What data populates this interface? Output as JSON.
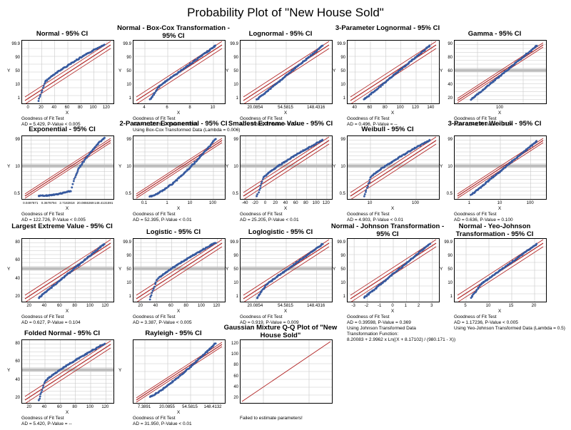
{
  "title": "Probability Plot of \"New House Sold\"",
  "chart_data": [
    {
      "type": "scatter",
      "title": "Normal - 95% CI",
      "xlabel": "X",
      "ylabel": "Y",
      "x_ticks": [
        "0",
        "20",
        "40",
        "60",
        "80",
        "100",
        "120"
      ],
      "y_ticks": [
        "99.9",
        "90",
        "50",
        "10",
        "1"
      ],
      "gof_lines": [
        "Goodness of Fit Test",
        "AD = 5.429, P-Value < 0.005"
      ],
      "curve": "concave",
      "band": "wide"
    },
    {
      "type": "scatter",
      "title": "Normal - Box-Cox Transformation - 95% CI",
      "xlabel": "X",
      "ylabel": "Y",
      "x_ticks": [
        "4",
        "6",
        "8",
        "10"
      ],
      "y_ticks": [
        "99.9",
        "90",
        "50",
        "10",
        "1"
      ],
      "gof_lines": [
        "Goodness of Fit Test",
        "AD = 1.12526, P-Value 0.00601",
        "Using Box-Cox Transformed Data (Lambda = 0.006)"
      ],
      "curve": "mild",
      "band": "wide"
    },
    {
      "type": "scatter",
      "title": "Lognormal - 95% CI",
      "xlabel": "X",
      "ylabel": "Y",
      "x_ticks": [
        "20.0854",
        "54.5815",
        "148.4316"
      ],
      "y_ticks": [
        "99.9",
        "90",
        "50",
        "10",
        "1"
      ],
      "gof_lines": [
        "Goodness of Fit Test",
        "AD = 0.683, P-Value = 0.074"
      ],
      "curve": "linear",
      "band": "wide"
    },
    {
      "type": "scatter",
      "title": "3-Parameter Lognormal - 95% CI",
      "xlabel": "X",
      "ylabel": "Y",
      "x_ticks": [
        "40",
        "60",
        "80",
        "100",
        "120",
        "140"
      ],
      "y_ticks": [
        "99.9",
        "90",
        "50",
        "10",
        "1"
      ],
      "gof_lines": [
        "Goodness of Fit Test",
        "AD = 0.496, P-Value = --"
      ],
      "curve": "linear",
      "band": "wide"
    },
    {
      "type": "scatter",
      "title": "Gamma - 95% CI",
      "xlabel": "X",
      "ylabel": "Y",
      "x_ticks": [
        "100"
      ],
      "y_ticks": [
        "90",
        "80",
        "60",
        "40",
        "20"
      ],
      "gof_lines": [
        "Goodness of Fit Test",
        "AD = 0.543, P-Value = 0.184"
      ],
      "curve": "linear",
      "band": "narrow",
      "dense_grid": true
    },
    {
      "type": "scatter",
      "title": "Exponential - 95% CI",
      "xlabel": "X",
      "ylabel": "Y",
      "x_ticks": [
        "0.0497871",
        "0.3678794",
        "2.7182818",
        "20.0855369",
        "148.4131591"
      ],
      "y_ticks": [
        "99",
        "10",
        "0.5"
      ],
      "gof_lines": [
        "Goodness of Fit Test",
        "AD = 122.726, P-Value < 0.005"
      ],
      "curve": "steep",
      "band": "narrow",
      "dense_grid": true
    },
    {
      "type": "scatter",
      "title": "2-Parameter Exponential - 95% CI",
      "xlabel": "X",
      "ylabel": "Y",
      "x_ticks": [
        "0.1",
        "1",
        "10",
        "100"
      ],
      "y_ticks": [
        "99",
        "10",
        "0.5"
      ],
      "gof_lines": [
        "Goodness of Fit Test",
        "AD = 52.395, P-Value < 0.01"
      ],
      "curve": "steep2",
      "band": "narrow",
      "dense_grid": true
    },
    {
      "type": "scatter",
      "title": "Smallest Extreme Value - 95% CI",
      "xlabel": "X",
      "ylabel": "Y",
      "x_ticks": [
        "-40",
        "-20",
        "0",
        "20",
        "40",
        "60",
        "80",
        "100",
        "120"
      ],
      "y_ticks": [
        "99",
        "10",
        "0.5"
      ],
      "gof_lines": [
        "Goodness of Fit Test",
        "AD = 25.205, P-Value < 0.01"
      ],
      "curve": "concave",
      "band": "wide",
      "dense_grid": true
    },
    {
      "type": "scatter",
      "title": "Weibull - 95% CI",
      "xlabel": "X",
      "ylabel": "Y",
      "x_ticks": [
        "10",
        "100"
      ],
      "y_ticks": [
        "99",
        "10",
        "0.5"
      ],
      "gof_lines": [
        "Goodness of Fit Test",
        "AD = 4.903, P-Value < 0.01"
      ],
      "curve": "concave",
      "band": "wide",
      "dense_grid": true
    },
    {
      "type": "scatter",
      "title": "3-Parameter Weibull - 95% CI",
      "xlabel": "X",
      "ylabel": "Y",
      "x_ticks": [
        "1",
        "10",
        "100"
      ],
      "y_ticks": [
        "99",
        "10",
        "0.5"
      ],
      "gof_lines": [
        "Goodness of Fit Test",
        "AD = 0.636, P-Value = 0.100"
      ],
      "curve": "linear",
      "band": "narrow",
      "dense_grid": true
    },
    {
      "type": "scatter",
      "title": "Largest Extreme Value - 95% CI",
      "xlabel": "X",
      "ylabel": "Y",
      "x_ticks": [
        "20",
        "40",
        "60",
        "80",
        "100",
        "120"
      ],
      "y_ticks": [
        "80",
        "60",
        "40",
        "20"
      ],
      "gof_lines": [
        "Goodness of Fit Test",
        "AD = 0.627, P-Value = 0.104"
      ],
      "curve": "linear",
      "band": "wide",
      "dense_grid": true
    },
    {
      "type": "scatter",
      "title": "Logistic - 95% CI",
      "xlabel": "X",
      "ylabel": "Y",
      "x_ticks": [
        "20",
        "40",
        "60",
        "80",
        "100",
        "120"
      ],
      "y_ticks": [
        "99.9",
        "90",
        "50",
        "10",
        "1"
      ],
      "gof_lines": [
        "Goodness of Fit Test",
        "AD = 3.387, P-Value < 0.005"
      ],
      "curve": "concave",
      "band": "wide",
      "dense_grid": true
    },
    {
      "type": "scatter",
      "title": "Loglogistic - 95% CI",
      "xlabel": "X",
      "ylabel": "Y",
      "x_ticks": [
        "20.0854",
        "54.5815",
        "148.4316"
      ],
      "y_ticks": [
        "99.9",
        "90",
        "50",
        "10",
        "1"
      ],
      "gof_lines": [
        "Goodness of Fit Test",
        "AD = 0.919, P-Value = 0.009"
      ],
      "curve": "mild",
      "band": "wide",
      "dense_grid": true
    },
    {
      "type": "scatter",
      "title": "Normal - Johnson Transformation - 95% CI",
      "xlabel": "X",
      "ylabel": "Y",
      "x_ticks": [
        "-3",
        "-2",
        "-1",
        "0",
        "1",
        "2",
        "3"
      ],
      "y_ticks": [
        "99.9",
        "90",
        "50",
        "10",
        "1"
      ],
      "gof_lines": [
        "Goodness of Fit Test",
        "AD = 0.39598, P-Value = 0.369",
        "Using Johnson Transformed Data",
        "Transformation Function:",
        "8.20083 + 2.9962 x Ln((X + 8.17102) / (980.171 - X))"
      ],
      "curve": "linear",
      "band": "wide"
    },
    {
      "type": "scatter",
      "title": "Normal - Yeo-Johnson Transformation - 95% CI",
      "xlabel": "X",
      "ylabel": "Y",
      "x_ticks": [
        "5",
        "10",
        "15",
        "20"
      ],
      "y_ticks": [
        "99.9",
        "90",
        "50",
        "10",
        "1"
      ],
      "gof_lines": [
        "Goodness of Fit Test",
        "AD = 1.17236, P-Value < 0.005",
        "Using Yeo-Johnson Transformed Data (Lambda = 0.5)"
      ],
      "curve": "mild",
      "band": "wide"
    },
    {
      "type": "scatter",
      "title": "Folded Normal - 95% CI",
      "xlabel": "X",
      "ylabel": "Y",
      "x_ticks": [
        "20",
        "40",
        "60",
        "80",
        "100",
        "120"
      ],
      "y_ticks": [
        "80",
        "60",
        "40",
        "20"
      ],
      "gof_lines": [
        "Goodness of Fit Test",
        "AD = 5.420, P-Value = --"
      ],
      "curve": "concave",
      "band": "wide",
      "dense_grid": true
    },
    {
      "type": "scatter",
      "title": "Rayleigh - 95% CI",
      "xlabel": "X",
      "ylabel": "Y",
      "x_ticks": [
        "7.3891",
        "20.0855",
        "54.5815",
        "148.4132"
      ],
      "y_ticks": [],
      "gof_lines": [
        "Goodness of Fit Test",
        "AD = 31.950, P-Value < 0.01"
      ],
      "curve": "steepend",
      "band": "narrow"
    },
    {
      "type": "line",
      "title": "Gaussian Mixture Q-Q Plot of \"New House Sold\"",
      "xlabel": "",
      "ylabel": "",
      "x_ticks": [],
      "y_ticks": [
        "120",
        "100",
        "80",
        "60",
        "40",
        "20"
      ],
      "gof_lines": [
        "Failed to estimate parameters!"
      ],
      "curve": "refline",
      "band": "none"
    }
  ]
}
